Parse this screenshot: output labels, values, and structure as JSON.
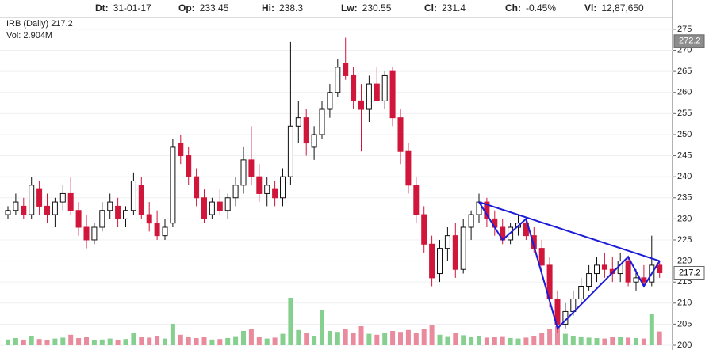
{
  "chart_data": {
    "type": "candlestick",
    "header": [
      {
        "label": "Dt:",
        "value": "31-01-17"
      },
      {
        "label": "Op:",
        "value": "233.45"
      },
      {
        "label": "Hi:",
        "value": "238.3"
      },
      {
        "label": "Lw:",
        "value": "230.55"
      },
      {
        "label": "Cl:",
        "value": "231.4"
      },
      {
        "label": "Ch:",
        "value": "-0.45%"
      },
      {
        "label": "Vl:",
        "value": "12,87,650"
      }
    ],
    "title": "IRB (Daily) 217.2",
    "subtitle": "Vol: 2.904M",
    "ylim": [
      200,
      276.3
    ],
    "yticks": [
      200,
      205,
      210,
      215,
      220,
      225,
      230,
      235,
      240,
      245,
      250,
      255,
      260,
      265,
      270,
      275
    ],
    "volume_lim": [
      0,
      25
    ],
    "up_color": "#ffffff",
    "down_color": "#d0163a",
    "volume_up_color": "#86d08f",
    "volume_down_color": "#e98b9c",
    "ohlc": [
      [
        231,
        233,
        230,
        232
      ],
      [
        232,
        236,
        231,
        234
      ],
      [
        233,
        235,
        230,
        231
      ],
      [
        231,
        240,
        230,
        238
      ],
      [
        237,
        239,
        231,
        233
      ],
      [
        233,
        236,
        229,
        231
      ],
      [
        231,
        235,
        228,
        234
      ],
      [
        234,
        238,
        232,
        236
      ],
      [
        236,
        240,
        231,
        232
      ],
      [
        232,
        234,
        226,
        228
      ],
      [
        228,
        231,
        223,
        225
      ],
      [
        225,
        229,
        224,
        228
      ],
      [
        228,
        234,
        227,
        232
      ],
      [
        232,
        236,
        230,
        234
      ],
      [
        233,
        235,
        228,
        230
      ],
      [
        230,
        233,
        228,
        232
      ],
      [
        232,
        241,
        231,
        239
      ],
      [
        238,
        240,
        230,
        231
      ],
      [
        231,
        234,
        227,
        229
      ],
      [
        229,
        232,
        225,
        226
      ],
      [
        226,
        230,
        225,
        228
      ],
      [
        229,
        249,
        228,
        247
      ],
      [
        248,
        250,
        243,
        245
      ],
      [
        245,
        247,
        238,
        240
      ],
      [
        240,
        242,
        233,
        235
      ],
      [
        235,
        237,
        229,
        230
      ],
      [
        231,
        235,
        230,
        234
      ],
      [
        234,
        237,
        231,
        232
      ],
      [
        232,
        236,
        230,
        235
      ],
      [
        235,
        240,
        233,
        238
      ],
      [
        238,
        247,
        236,
        244
      ],
      [
        244,
        252,
        238,
        240
      ],
      [
        240,
        243,
        234,
        236
      ],
      [
        236,
        240,
        233,
        238
      ],
      [
        237,
        239,
        233,
        235
      ],
      [
        235,
        242,
        233,
        240
      ],
      [
        240,
        272,
        238,
        252
      ],
      [
        252,
        258,
        248,
        254
      ],
      [
        254,
        256,
        245,
        248
      ],
      [
        247,
        252,
        244,
        250
      ],
      [
        250,
        258,
        249,
        256
      ],
      [
        256,
        262,
        254,
        260
      ],
      [
        260,
        268,
        259,
        266
      ],
      [
        267,
        273,
        263,
        264
      ],
      [
        264,
        266,
        256,
        258
      ],
      [
        258,
        262,
        246,
        256
      ],
      [
        256,
        264,
        253,
        262
      ],
      [
        262,
        266,
        258,
        258
      ],
      [
        258,
        265,
        256,
        264
      ],
      [
        265,
        266,
        252,
        254
      ],
      [
        254,
        256,
        243,
        246
      ],
      [
        246,
        248,
        236,
        238
      ],
      [
        238,
        240,
        229,
        231
      ],
      [
        231,
        233,
        222,
        224
      ],
      [
        224,
        226,
        214,
        216
      ],
      [
        217,
        225,
        215,
        223
      ],
      [
        223,
        228,
        220,
        226
      ],
      [
        226,
        229,
        216,
        218
      ],
      [
        218,
        230,
        217,
        228
      ],
      [
        228,
        232,
        225,
        231
      ],
      [
        231,
        236,
        229,
        234
      ],
      [
        234,
        235,
        228,
        230
      ],
      [
        230,
        232,
        226,
        228
      ],
      [
        228,
        230,
        224,
        225
      ],
      [
        225,
        229,
        224,
        228
      ],
      [
        228,
        231,
        226,
        229
      ],
      [
        229,
        230,
        225,
        226
      ],
      [
        226,
        228,
        222,
        223
      ],
      [
        223,
        225,
        217,
        219
      ],
      [
        219,
        221,
        209,
        211
      ],
      [
        211,
        213,
        203,
        205
      ],
      [
        205,
        210,
        204,
        208
      ],
      [
        208,
        213,
        207,
        211
      ],
      [
        211,
        216,
        210,
        214
      ],
      [
        214,
        219,
        213,
        217
      ],
      [
        217,
        221,
        215,
        219
      ],
      [
        219,
        222,
        216,
        218
      ],
      [
        218,
        221,
        215,
        217
      ],
      [
        217,
        222,
        215,
        220
      ],
      [
        220,
        221,
        214,
        215
      ],
      [
        215,
        218,
        213,
        216
      ],
      [
        216,
        219,
        214,
        215
      ],
      [
        215,
        226,
        214,
        219
      ],
      [
        219,
        220,
        216,
        217.2
      ]
    ],
    "volume": [
      1.2,
      1.5,
      1.0,
      2.0,
      1.3,
      1.1,
      1.4,
      1.6,
      2.2,
      1.5,
      1.8,
      1.0,
      1.2,
      1.4,
      1.1,
      1.3,
      2.5,
      1.8,
      1.6,
      2.0,
      1.4,
      4.5,
      2.2,
      1.8,
      1.5,
      1.7,
      1.2,
      1.3,
      1.5,
      1.9,
      3.0,
      3.5,
      1.8,
      1.4,
      1.6,
      2.4,
      10.0,
      3.2,
      2.5,
      2.0,
      7.5,
      3.0,
      2.8,
      3.5,
      2.6,
      4.0,
      2.4,
      2.2,
      2.5,
      3.0,
      2.8,
      3.2,
      2.6,
      3.4,
      4.2,
      2.2,
      1.9,
      2.5,
      2.1,
      1.8,
      2.0,
      1.6,
      1.7,
      1.9,
      1.5,
      1.4,
      1.6,
      2.0,
      2.6,
      3.4,
      4.0,
      2.4,
      2.0,
      1.8,
      1.6,
      1.5,
      1.4,
      1.7,
      1.8,
      1.6,
      1.5,
      1.4,
      6.5,
      2.9
    ],
    "price_markers": [
      {
        "value": 272.2,
        "color": "#8c8c8c",
        "text_color": "#ffffff"
      },
      {
        "value": 217.2,
        "color": "#ffffff",
        "text_color": "#000000"
      }
    ],
    "drawings": [
      {
        "color": "#1c1cd8",
        "points": [
          [
            60,
            234
          ],
          [
            63,
            225
          ],
          [
            66,
            230
          ],
          [
            70,
            204
          ],
          [
            79,
            221
          ],
          [
            81,
            214
          ],
          [
            83,
            220
          ]
        ]
      },
      {
        "color": "#1c1cd8",
        "points": [
          [
            60,
            234
          ],
          [
            83,
            220
          ]
        ]
      }
    ]
  }
}
